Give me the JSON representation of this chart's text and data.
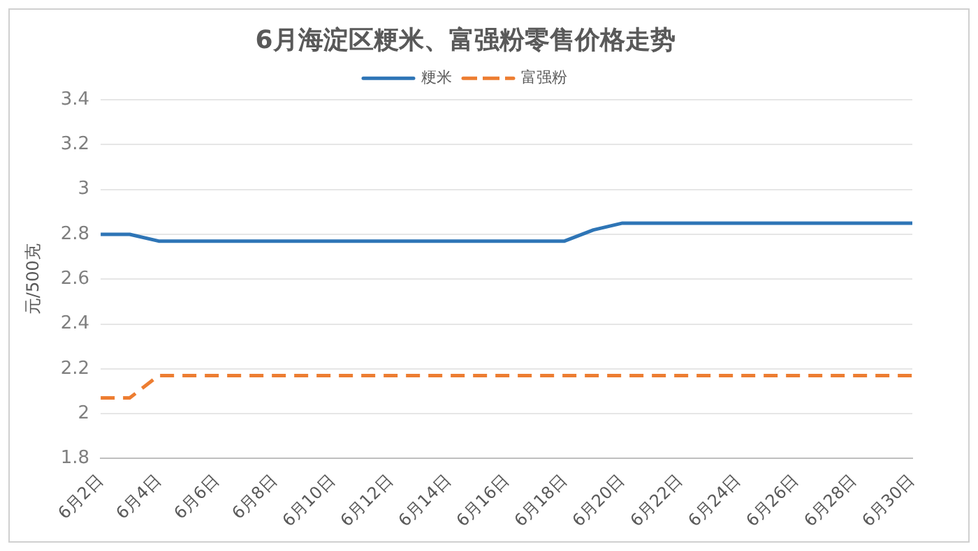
{
  "chart_data": {
    "type": "line",
    "title": "6月海淀区粳米、富强粉零售价格走势",
    "ylabel": "元/500克",
    "categories": [
      "6月2日",
      null,
      "6月4日",
      null,
      "6月6日",
      null,
      "6月8日",
      null,
      "6月10日",
      null,
      "6月12日",
      null,
      "6月14日",
      null,
      "6月16日",
      null,
      "6月18日",
      null,
      "6月20日",
      null,
      "6月22日",
      null,
      "6月24日",
      null,
      "6月26日",
      null,
      "6月28日",
      null,
      "6月30日"
    ],
    "series": [
      {
        "name": "粳米",
        "color": "#2e75b6",
        "line_style": "solid",
        "values": [
          2.8,
          2.8,
          2.77,
          2.77,
          2.77,
          2.77,
          2.77,
          2.77,
          2.77,
          2.77,
          2.77,
          2.77,
          2.77,
          2.77,
          2.77,
          2.77,
          2.77,
          2.82,
          2.85,
          2.85,
          2.85,
          2.85,
          2.85,
          2.85,
          2.85,
          2.85,
          2.85,
          2.85,
          2.85
        ]
      },
      {
        "name": "富强粉",
        "color": "#ed7d31",
        "line_style": "dashed",
        "values": [
          2.07,
          2.07,
          2.17,
          2.17,
          2.17,
          2.17,
          2.17,
          2.17,
          2.17,
          2.17,
          2.17,
          2.17,
          2.17,
          2.17,
          2.17,
          2.17,
          2.17,
          2.17,
          2.17,
          2.17,
          2.17,
          2.17,
          2.17,
          2.17,
          2.17,
          2.17,
          2.17,
          2.17,
          2.17
        ]
      }
    ],
    "ylim": [
      1.8,
      3.4
    ],
    "yticks": [
      1.8,
      2,
      2.2,
      2.4,
      2.6,
      2.8,
      3,
      3.2,
      3.4
    ],
    "grid": "y",
    "legend": "top",
    "marker": "none"
  }
}
